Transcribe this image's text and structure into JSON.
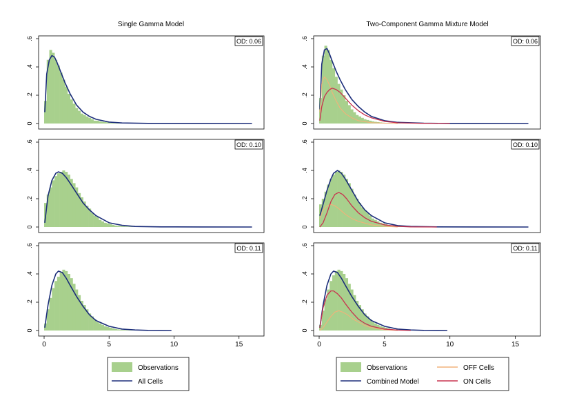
{
  "figure": {
    "titles": [
      "Single Gamma Model",
      "Two-Component Gamma Mixture Model"
    ],
    "x_ticks": [
      "0",
      "5",
      "10",
      "15"
    ],
    "y_ticks": [
      "0",
      ".2",
      ".4",
      ".6"
    ],
    "legend_left": [
      {
        "key": "observations",
        "label": "Observations",
        "kind": "box",
        "color": "#a8d08d"
      },
      {
        "key": "all_cells",
        "label": "All Cells",
        "kind": "line",
        "color": "#1b2d7a"
      }
    ],
    "legend_right": [
      {
        "key": "observations",
        "label": "Observations",
        "kind": "box",
        "color": "#a8d08d"
      },
      {
        "key": "combined",
        "label": "Combined Model",
        "kind": "line",
        "color": "#1b2d7a"
      },
      {
        "key": "off",
        "label": "OFF Cells",
        "kind": "line",
        "color": "#f2b27a"
      },
      {
        "key": "on",
        "label": "ON Cells",
        "kind": "line",
        "color": "#c8324e"
      }
    ],
    "colors": {
      "observations": "#a8d08d",
      "model": "#1b2d7a",
      "off": "#f2b27a",
      "on": "#c8324e",
      "axis": "#000000"
    }
  },
  "chart_data": [
    {
      "type": "area",
      "panel": "single-row1",
      "title": "Single Gamma Model",
      "badge": "OD: 0.06",
      "xlim": [
        0,
        16.5
      ],
      "ylim": [
        0,
        0.6
      ],
      "x_ticks": [
        0,
        5,
        10,
        15
      ],
      "y_ticks": [
        0,
        0.2,
        0.4,
        0.6
      ],
      "histogram": {
        "bin_width": 0.2,
        "x_range": [
          0,
          7
        ],
        "values": [
          0.16,
          0.45,
          0.52,
          0.5,
          0.45,
          0.41,
          0.36,
          0.31,
          0.26,
          0.21,
          0.17,
          0.14,
          0.11,
          0.09,
          0.07,
          0.06,
          0.05,
          0.04,
          0.03,
          0.02,
          0.02,
          0.015,
          0.012,
          0.01,
          0.008,
          0.006,
          0.005,
          0.004,
          0.003,
          0.003,
          0.002,
          0.002,
          0.002,
          0.001,
          0.001
        ]
      },
      "curves": [
        {
          "name": "All Cells",
          "role": "model",
          "x": [
            0.05,
            0.2,
            0.4,
            0.6,
            0.8,
            1.0,
            1.3,
            1.6,
            2.0,
            2.5,
            3.0,
            3.5,
            4.0,
            5.0,
            6.0,
            8.0,
            10.0,
            12.0,
            16.0
          ],
          "y": [
            0.08,
            0.35,
            0.45,
            0.48,
            0.47,
            0.43,
            0.36,
            0.29,
            0.21,
            0.13,
            0.08,
            0.05,
            0.03,
            0.01,
            0.004,
            0.001,
            0.0005,
            0.0002,
            0.0
          ]
        }
      ]
    },
    {
      "type": "area",
      "panel": "mixture-row1",
      "title": "Two-Component Gamma Mixture Model",
      "badge": "OD: 0.06",
      "xlim": [
        0,
        16.5
      ],
      "ylim": [
        0,
        0.6
      ],
      "x_ticks": [
        0,
        5,
        10,
        15
      ],
      "y_ticks": [
        0,
        0.2,
        0.4,
        0.6
      ],
      "histogram": {
        "bin_width": 0.2,
        "x_range": [
          0,
          7
        ],
        "values": [
          0.18,
          0.48,
          0.55,
          0.52,
          0.45,
          0.39,
          0.33,
          0.28,
          0.24,
          0.2,
          0.16,
          0.13,
          0.1,
          0.08,
          0.06,
          0.05,
          0.04,
          0.03,
          0.025,
          0.02,
          0.015,
          0.012,
          0.01,
          0.008,
          0.006,
          0.005,
          0.004,
          0.003,
          0.002,
          0.002,
          0.002,
          0.001,
          0.001,
          0.001,
          0.001
        ]
      },
      "curves": [
        {
          "name": "Combined Model",
          "role": "model",
          "x": [
            0.05,
            0.2,
            0.4,
            0.6,
            0.8,
            1.0,
            1.3,
            1.6,
            2.0,
            2.5,
            3.0,
            3.5,
            4.0,
            5.0,
            6.0,
            8.0,
            10.0,
            12.0,
            16.0
          ],
          "y": [
            0.1,
            0.42,
            0.52,
            0.53,
            0.49,
            0.44,
            0.37,
            0.31,
            0.24,
            0.17,
            0.12,
            0.08,
            0.05,
            0.02,
            0.008,
            0.002,
            0.0005,
            0.0001,
            0.0
          ]
        },
        {
          "name": "OFF Cells",
          "role": "off",
          "x": [
            0.05,
            0.2,
            0.4,
            0.6,
            0.8,
            1.0,
            1.3,
            1.6,
            2.0,
            2.5,
            3.0,
            4.0,
            5.0,
            6.0
          ],
          "y": [
            0.08,
            0.28,
            0.33,
            0.31,
            0.27,
            0.22,
            0.16,
            0.11,
            0.07,
            0.04,
            0.02,
            0.006,
            0.002,
            0.0
          ]
        },
        {
          "name": "ON Cells",
          "role": "on",
          "x": [
            0.05,
            0.2,
            0.4,
            0.6,
            0.8,
            1.0,
            1.3,
            1.6,
            2.0,
            2.5,
            3.0,
            3.5,
            4.0,
            5.0,
            6.0,
            8.0,
            10.0
          ],
          "y": [
            0.02,
            0.12,
            0.19,
            0.22,
            0.24,
            0.25,
            0.24,
            0.22,
            0.18,
            0.13,
            0.09,
            0.06,
            0.04,
            0.015,
            0.005,
            0.001,
            0.0
          ]
        }
      ]
    },
    {
      "type": "area",
      "panel": "single-row2",
      "title": "",
      "badge": "OD: 0.10",
      "xlim": [
        0,
        16.5
      ],
      "ylim": [
        0,
        0.6
      ],
      "x_ticks": [
        0,
        5,
        10,
        15
      ],
      "y_ticks": [
        0,
        0.2,
        0.4,
        0.6
      ],
      "histogram": {
        "bin_width": 0.2,
        "x_range": [
          0,
          7
        ],
        "values": [
          0.17,
          0.23,
          0.28,
          0.33,
          0.36,
          0.38,
          0.39,
          0.4,
          0.39,
          0.37,
          0.34,
          0.31,
          0.28,
          0.24,
          0.21,
          0.18,
          0.15,
          0.13,
          0.1,
          0.08,
          0.07,
          0.05,
          0.04,
          0.03,
          0.025,
          0.02,
          0.015,
          0.01,
          0.008,
          0.006,
          0.005,
          0.004,
          0.003,
          0.002,
          0.001
        ]
      },
      "curves": [
        {
          "name": "All Cells",
          "role": "model",
          "x": [
            0.05,
            0.3,
            0.6,
            0.9,
            1.1,
            1.4,
            1.7,
            2.0,
            2.5,
            3.0,
            3.5,
            4.0,
            5.0,
            6.0,
            7.0,
            9.0,
            12.0,
            16.0
          ],
          "y": [
            0.03,
            0.22,
            0.33,
            0.38,
            0.39,
            0.38,
            0.35,
            0.31,
            0.24,
            0.17,
            0.12,
            0.08,
            0.03,
            0.012,
            0.004,
            0.001,
            0.0002,
            0.0
          ]
        }
      ]
    },
    {
      "type": "area",
      "panel": "mixture-row2",
      "title": "",
      "badge": "OD: 0.10",
      "xlim": [
        0,
        16.5
      ],
      "ylim": [
        0,
        0.6
      ],
      "x_ticks": [
        0,
        5,
        10,
        15
      ],
      "y_ticks": [
        0,
        0.2,
        0.4,
        0.6
      ],
      "histogram": {
        "bin_width": 0.2,
        "x_range": [
          0,
          7
        ],
        "values": [
          0.16,
          0.2,
          0.25,
          0.3,
          0.34,
          0.37,
          0.39,
          0.4,
          0.39,
          0.37,
          0.34,
          0.31,
          0.27,
          0.23,
          0.2,
          0.17,
          0.14,
          0.12,
          0.1,
          0.08,
          0.06,
          0.05,
          0.04,
          0.03,
          0.025,
          0.02,
          0.015,
          0.01,
          0.008,
          0.006,
          0.005,
          0.004,
          0.003,
          0.002,
          0.001
        ]
      },
      "curves": [
        {
          "name": "Combined Model",
          "role": "model",
          "x": [
            0.05,
            0.3,
            0.6,
            0.9,
            1.1,
            1.4,
            1.7,
            2.0,
            2.5,
            3.0,
            3.5,
            4.0,
            5.0,
            6.0,
            7.0,
            9.0,
            12.0,
            16.0
          ],
          "y": [
            0.08,
            0.16,
            0.26,
            0.34,
            0.38,
            0.4,
            0.38,
            0.34,
            0.26,
            0.18,
            0.12,
            0.08,
            0.03,
            0.01,
            0.004,
            0.001,
            0.0002,
            0.0
          ]
        },
        {
          "name": "OFF Cells",
          "role": "off",
          "x": [
            0.05,
            0.3,
            0.6,
            0.9,
            1.2,
            1.5,
            2.0,
            2.5,
            3.0,
            4.0,
            5.0,
            6.0
          ],
          "y": [
            0.06,
            0.12,
            0.15,
            0.16,
            0.15,
            0.13,
            0.09,
            0.06,
            0.04,
            0.015,
            0.005,
            0.0
          ]
        },
        {
          "name": "ON Cells",
          "role": "on",
          "x": [
            0.05,
            0.3,
            0.6,
            0.9,
            1.2,
            1.5,
            1.8,
            2.1,
            2.5,
            3.0,
            3.5,
            4.0,
            5.0,
            6.0,
            7.0,
            9.0
          ],
          "y": [
            0.0,
            0.03,
            0.1,
            0.18,
            0.23,
            0.245,
            0.23,
            0.2,
            0.15,
            0.1,
            0.065,
            0.04,
            0.015,
            0.005,
            0.001,
            0.0
          ]
        }
      ]
    },
    {
      "type": "area",
      "panel": "single-row3",
      "title": "",
      "badge": "OD: 0.11",
      "xlim": [
        0,
        16.5
      ],
      "ylim": [
        0,
        0.6
      ],
      "x_ticks": [
        0,
        5,
        10,
        15
      ],
      "y_ticks": [
        0,
        0.2,
        0.4,
        0.6
      ],
      "histogram": {
        "bin_width": 0.2,
        "x_range": [
          0,
          7
        ],
        "values": [
          0.05,
          0.15,
          0.23,
          0.3,
          0.35,
          0.38,
          0.41,
          0.43,
          0.42,
          0.4,
          0.37,
          0.33,
          0.29,
          0.25,
          0.21,
          0.18,
          0.15,
          0.12,
          0.1,
          0.08,
          0.06,
          0.05,
          0.04,
          0.03,
          0.025,
          0.02,
          0.015,
          0.01,
          0.008,
          0.006,
          0.005,
          0.004,
          0.003,
          0.002,
          0.001
        ]
      },
      "curves": [
        {
          "name": "All Cells",
          "role": "model",
          "x": [
            0.05,
            0.3,
            0.6,
            0.9,
            1.1,
            1.4,
            1.7,
            2.0,
            2.5,
            3.0,
            3.5,
            4.0,
            5.0,
            6.0,
            7.0,
            8.0,
            9.8
          ],
          "y": [
            0.02,
            0.18,
            0.32,
            0.4,
            0.42,
            0.41,
            0.37,
            0.32,
            0.24,
            0.17,
            0.11,
            0.07,
            0.03,
            0.01,
            0.004,
            0.001,
            0.0
          ]
        }
      ]
    },
    {
      "type": "area",
      "panel": "mixture-row3",
      "title": "",
      "badge": "OD: 0.11",
      "xlim": [
        0,
        16.5
      ],
      "ylim": [
        0,
        0.6
      ],
      "x_ticks": [
        0,
        5,
        10,
        15
      ],
      "y_ticks": [
        0,
        0.2,
        0.4,
        0.6
      ],
      "histogram": {
        "bin_width": 0.2,
        "x_range": [
          0,
          7
        ],
        "values": [
          0.04,
          0.14,
          0.22,
          0.29,
          0.35,
          0.39,
          0.42,
          0.43,
          0.42,
          0.4,
          0.37,
          0.33,
          0.29,
          0.25,
          0.21,
          0.18,
          0.15,
          0.12,
          0.1,
          0.08,
          0.06,
          0.05,
          0.04,
          0.03,
          0.025,
          0.02,
          0.015,
          0.01,
          0.008,
          0.006,
          0.005,
          0.004,
          0.003,
          0.002,
          0.001
        ]
      },
      "curves": [
        {
          "name": "Combined Model",
          "role": "model",
          "x": [
            0.05,
            0.3,
            0.6,
            0.9,
            1.1,
            1.4,
            1.7,
            2.0,
            2.5,
            3.0,
            3.5,
            4.0,
            5.0,
            6.0,
            7.0,
            8.0,
            9.8
          ],
          "y": [
            0.02,
            0.18,
            0.32,
            0.4,
            0.42,
            0.41,
            0.37,
            0.32,
            0.24,
            0.17,
            0.11,
            0.07,
            0.03,
            0.01,
            0.004,
            0.001,
            0.0
          ]
        },
        {
          "name": "OFF Cells",
          "role": "off",
          "x": [
            0.05,
            0.3,
            0.6,
            0.9,
            1.2,
            1.5,
            1.8,
            2.2,
            2.6,
            3.0,
            3.5,
            4.0,
            5.0,
            6.0
          ],
          "y": [
            0.0,
            0.02,
            0.06,
            0.1,
            0.13,
            0.14,
            0.13,
            0.11,
            0.08,
            0.06,
            0.035,
            0.02,
            0.005,
            0.0
          ]
        },
        {
          "name": "ON Cells",
          "role": "on",
          "x": [
            0.05,
            0.3,
            0.6,
            0.9,
            1.1,
            1.4,
            1.7,
            2.0,
            2.5,
            3.0,
            3.5,
            4.0,
            5.0,
            6.0,
            7.0
          ],
          "y": [
            0.02,
            0.16,
            0.25,
            0.28,
            0.28,
            0.26,
            0.23,
            0.19,
            0.13,
            0.08,
            0.05,
            0.03,
            0.01,
            0.003,
            0.0
          ]
        }
      ]
    }
  ]
}
